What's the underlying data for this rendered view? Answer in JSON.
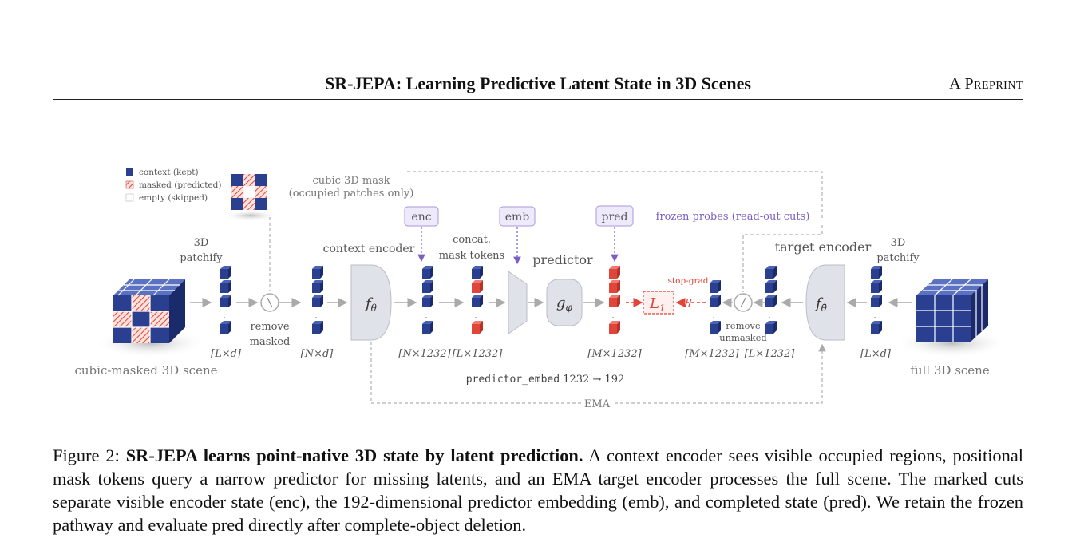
{
  "header": {
    "title": "SR-JEPA: Learning Predictive Latent State in 3D Scenes",
    "right": "A Preprint"
  },
  "figure": {
    "legend": {
      "context": "context (kept)",
      "masked": "masked (predicted)",
      "empty": "empty (skipped)"
    },
    "mask_label_1": "cubic 3D mask",
    "mask_label_2": "(occupied patches only)",
    "left_scene_label": "cubic-masked 3D scene",
    "right_scene_label": "full 3D scene",
    "patchify_left_1": "3D",
    "patchify_left_2": "patchify",
    "patchify_right_1": "3D",
    "patchify_right_2": "patchify",
    "remove_masked_1": "remove",
    "remove_masked_2": "masked",
    "context_encoder": "context encoder",
    "target_encoder": "target encoder",
    "concat_1": "concat.",
    "concat_2": "mask tokens",
    "predictor": "predictor",
    "frozen_probes": "frozen probes (read-out cuts)",
    "probe_enc": "enc",
    "probe_emb": "emb",
    "probe_pred": "pred",
    "f_theta": "f",
    "f_theta_sub": "θ",
    "f_theta_bar_sub": "θ̄",
    "g_phi": "g",
    "g_phi_sub": "φ",
    "loss": "L",
    "loss_sub": "1",
    "stop_grad": "stop-grad",
    "remove_unmasked_1": "remove",
    "remove_unmasked_2": "unmasked",
    "dim_Ld_left": "[L×d]",
    "dim_Nd": "[N×d]",
    "dim_N1232": "[N×1232]",
    "dim_L1232_mid": "[L×1232]",
    "dim_M1232_pred": "[M×1232]",
    "dim_M1232_tgt": "[M×1232]",
    "dim_L1232_tgt": "[L×1232]",
    "dim_Ld_right": "[L×d]",
    "embed_code": "predictor_embed",
    "embed_dims": "1232 → 192",
    "ema": "EMA"
  },
  "caption": {
    "prefix": "Figure 2: ",
    "bold": "SR-JEPA learns point-native 3D state by latent prediction.",
    "text": " A context encoder sees visible occupied regions, positional mask tokens query a narrow predictor for missing latents, and an EMA target encoder processes the full scene. The marked cuts separate visible encoder state (enc), the 192-dimensional predictor embedding (emb), and completed state (pred). We retain the frozen pathway and evaluate pred directly after complete-object deletion."
  },
  "colors": {
    "context": "#2a3f8f",
    "masked": "#e0453a",
    "probe": "#7a5fc4",
    "dashed": "#b0b0b0"
  }
}
